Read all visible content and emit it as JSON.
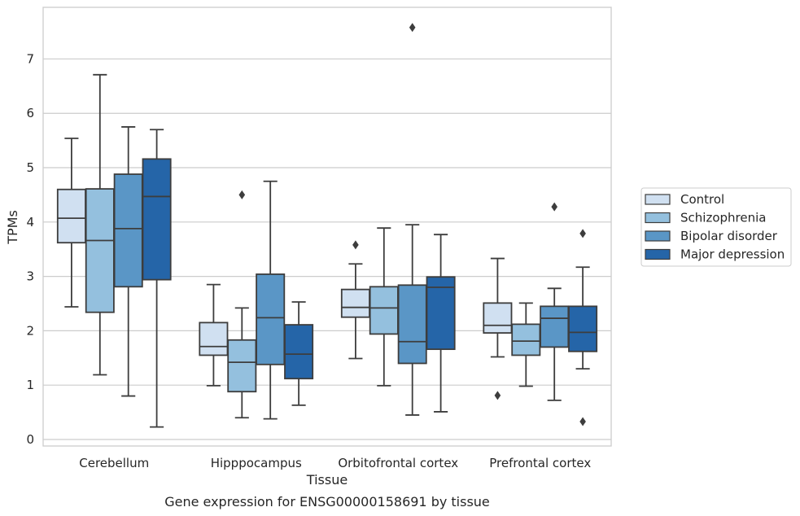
{
  "caption": "Gene expression for ENSG00000158691 by tissue",
  "chart_data": {
    "type": "boxplot",
    "xlabel": "Tissue",
    "ylabel": "TPMs",
    "ylim": [
      -0.12,
      7.95
    ],
    "yticks": [
      0,
      1,
      2,
      3,
      4,
      5,
      6,
      7
    ],
    "grid": "horizontal",
    "legend_position": "right",
    "categories": [
      "Cerebellum",
      "Hipppocampus",
      "Orbitofrontal cortex",
      "Prefrontal cortex"
    ],
    "series": [
      {
        "name": "Control",
        "color": "#d0e0f1",
        "boxes": [
          {
            "whisker_low": 2.44,
            "q1": 3.62,
            "median": 4.07,
            "q3": 4.6,
            "whisker_high": 5.54,
            "outliers": []
          },
          {
            "whisker_low": 0.99,
            "q1": 1.55,
            "median": 1.71,
            "q3": 2.15,
            "whisker_high": 2.85,
            "outliers": []
          },
          {
            "whisker_low": 1.49,
            "q1": 2.25,
            "median": 2.43,
            "q3": 2.76,
            "whisker_high": 3.23,
            "outliers": [
              3.58
            ]
          },
          {
            "whisker_low": 1.52,
            "q1": 1.96,
            "median": 2.1,
            "q3": 2.51,
            "whisker_high": 3.33,
            "outliers": [
              0.81
            ]
          }
        ]
      },
      {
        "name": "Schizophrenia",
        "color": "#94c0de",
        "boxes": [
          {
            "whisker_low": 1.19,
            "q1": 2.34,
            "median": 3.66,
            "q3": 4.61,
            "whisker_high": 6.71,
            "outliers": []
          },
          {
            "whisker_low": 0.4,
            "q1": 0.88,
            "median": 1.42,
            "q3": 1.83,
            "whisker_high": 2.42,
            "outliers": [
              4.5
            ]
          },
          {
            "whisker_low": 0.99,
            "q1": 1.94,
            "median": 2.42,
            "q3": 2.81,
            "whisker_high": 3.89,
            "outliers": []
          },
          {
            "whisker_low": 0.98,
            "q1": 1.55,
            "median": 1.81,
            "q3": 2.12,
            "whisker_high": 2.51,
            "outliers": []
          }
        ]
      },
      {
        "name": "Bipolar disorder",
        "color": "#5a96c6",
        "boxes": [
          {
            "whisker_low": 0.8,
            "q1": 2.81,
            "median": 3.88,
            "q3": 4.88,
            "whisker_high": 5.75,
            "outliers": []
          },
          {
            "whisker_low": 0.38,
            "q1": 1.38,
            "median": 2.24,
            "q3": 3.04,
            "whisker_high": 4.75,
            "outliers": []
          },
          {
            "whisker_low": 0.45,
            "q1": 1.4,
            "median": 1.8,
            "q3": 2.84,
            "whisker_high": 3.95,
            "outliers": [
              7.58
            ]
          },
          {
            "whisker_low": 0.72,
            "q1": 1.7,
            "median": 2.23,
            "q3": 2.45,
            "whisker_high": 2.78,
            "outliers": [
              4.28
            ]
          }
        ]
      },
      {
        "name": "Major depression",
        "color": "#2565a8",
        "boxes": [
          {
            "whisker_low": 0.23,
            "q1": 2.94,
            "median": 4.47,
            "q3": 5.16,
            "whisker_high": 5.7,
            "outliers": []
          },
          {
            "whisker_low": 0.63,
            "q1": 1.12,
            "median": 1.57,
            "q3": 2.11,
            "whisker_high": 2.53,
            "outliers": []
          },
          {
            "whisker_low": 0.51,
            "q1": 1.66,
            "median": 2.8,
            "q3": 2.99,
            "whisker_high": 3.77,
            "outliers": []
          },
          {
            "whisker_low": 1.3,
            "q1": 1.62,
            "median": 1.97,
            "q3": 2.45,
            "whisker_high": 3.17,
            "outliers": [
              3.79,
              0.33
            ]
          }
        ]
      }
    ]
  }
}
